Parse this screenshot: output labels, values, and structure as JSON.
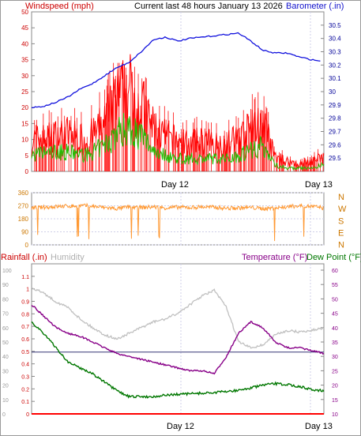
{
  "header": {
    "title": "Current last 48 hours January 13 2026"
  },
  "colors": {
    "wind": "#ff0000",
    "gust_bars": "#ff0000",
    "wind_avg": "#22bb00",
    "barometer": "#1111dd",
    "direction": "#ff9933",
    "rain": "#ff0000",
    "humidity": "#c0c0c0",
    "temperature": "#880088",
    "dewpoint": "#007700",
    "axis_left": "#cc0000",
    "axis_right_baro": "#000099",
    "axis_dir": "#cc7700",
    "rain_baseline": "#333377",
    "grid": "#cfcfe8"
  },
  "chart_data": [
    {
      "type": "line",
      "name": "wind_barometer",
      "title": "Current last 48 hours January 13 2026",
      "ylabel_left": "Windspeed (mph)",
      "ylabel_right": "Barometer (.in)",
      "ylim_left": [
        0,
        50
      ],
      "ylim_right": [
        29.4,
        30.6
      ],
      "yticks_left": [
        "0",
        "5",
        "10",
        "15",
        "20",
        "25",
        "30",
        "35",
        "40",
        "45",
        "50"
      ],
      "yticks_right": [
        "29.5",
        "29.6",
        "29.7",
        "29.8",
        "29.9",
        "30",
        "30.1",
        "30.2",
        "30.3",
        "30.4",
        "30.5"
      ],
      "xticks": [
        "Day 12",
        "Day 13"
      ],
      "xlim_hours": [
        0,
        48
      ],
      "series": [
        {
          "name": "Windspeed",
          "x": [
            0,
            3,
            6,
            9,
            12,
            14,
            16,
            18,
            20,
            22,
            24,
            26,
            28,
            30,
            32,
            34,
            36,
            38,
            40,
            42,
            44,
            46,
            48
          ],
          "values": [
            9,
            10,
            11,
            9,
            14,
            21,
            24,
            19,
            13,
            10,
            9,
            8,
            9,
            8,
            8,
            10,
            12,
            14,
            4,
            3,
            2,
            3,
            4
          ]
        },
        {
          "name": "Wind average",
          "x": [
            0,
            3,
            6,
            9,
            12,
            14,
            16,
            18,
            20,
            22,
            24,
            26,
            28,
            30,
            32,
            34,
            36,
            38,
            40,
            42,
            44,
            46,
            48
          ],
          "values": [
            5,
            6,
            6,
            5,
            8,
            12,
            14,
            11,
            7,
            5,
            4,
            4,
            4,
            4,
            4,
            5,
            7,
            8,
            2,
            1,
            1,
            1,
            2
          ]
        },
        {
          "name": "Barometer",
          "x": [
            0,
            2,
            4,
            6,
            8,
            10,
            12,
            14,
            16,
            18,
            20,
            22,
            24,
            26,
            28,
            30,
            32,
            34,
            36,
            38,
            40,
            42,
            44,
            46,
            47.5
          ],
          "values": [
            29.88,
            29.89,
            29.92,
            29.96,
            30.02,
            30.06,
            30.12,
            30.18,
            30.22,
            30.3,
            30.39,
            30.41,
            30.38,
            30.4,
            30.41,
            30.42,
            30.43,
            30.44,
            30.38,
            30.31,
            30.29,
            30.29,
            30.26,
            30.24,
            30.23
          ]
        }
      ]
    },
    {
      "type": "line",
      "name": "wind_direction",
      "ylim": [
        0,
        360
      ],
      "yticks": [
        "0",
        "90",
        "180",
        "270",
        "360"
      ],
      "compass_labels": [
        "N",
        "W",
        "S",
        "E",
        "N"
      ],
      "series": [
        {
          "name": "Direction",
          "x": [
            0,
            3,
            6,
            9,
            12,
            14,
            16,
            18,
            20,
            22,
            24,
            26,
            28,
            30,
            32,
            34,
            36,
            38,
            40,
            42,
            44,
            46,
            48
          ],
          "values": [
            255,
            262,
            268,
            270,
            258,
            250,
            262,
            258,
            262,
            255,
            260,
            258,
            262,
            260,
            252,
            255,
            258,
            250,
            255,
            262,
            270,
            265,
            255
          ]
        }
      ]
    },
    {
      "type": "line",
      "name": "rain_humidity_temperature",
      "ylabel_left": "Rainfall (.in)",
      "ylabel_left_secondary": "Humidity",
      "ylabel_right": "Temperature (°F)",
      "ylabel_right_secondary": "Dew Point (°F)",
      "ylim_rain": [
        0,
        1.2
      ],
      "ylim_humidity": [
        0,
        100
      ],
      "ylim_temp": [
        10,
        60
      ],
      "yticks_rain": [
        "0",
        "0.1",
        "0.2",
        "0.3",
        "0.4",
        "0.5",
        "0.6",
        "0.7",
        "0.8",
        "0.9",
        "1",
        "1.1"
      ],
      "yticks_humidity": [
        "0",
        "10",
        "20",
        "30",
        "40",
        "50",
        "60",
        "70",
        "80",
        "90",
        "100"
      ],
      "yticks_temp": [
        "10",
        "15",
        "20",
        "25",
        "30",
        "35",
        "40",
        "45",
        "50",
        "55",
        "60"
      ],
      "xticks": [
        "Day 12",
        "Day 13"
      ],
      "series": [
        {
          "name": "Rainfall",
          "x": [
            0,
            48
          ],
          "values": [
            0,
            0
          ]
        },
        {
          "name": "Humidity",
          "x": [
            0,
            2,
            4,
            6,
            8,
            10,
            12,
            14,
            16,
            18,
            20,
            22,
            24,
            26,
            28,
            30,
            32,
            34,
            36,
            38,
            40,
            42,
            44,
            46,
            48
          ],
          "values": [
            88,
            84,
            78,
            74,
            66,
            60,
            55,
            52,
            56,
            60,
            64,
            66,
            70,
            76,
            82,
            86,
            74,
            50,
            46,
            48,
            55,
            58,
            57,
            58,
            60
          ]
        },
        {
          "name": "Temperature",
          "x": [
            0,
            2,
            4,
            6,
            8,
            10,
            12,
            14,
            16,
            18,
            20,
            22,
            24,
            26,
            28,
            30,
            32,
            34,
            36,
            38,
            40,
            42,
            44,
            46,
            48
          ],
          "values": [
            48,
            44,
            40,
            38,
            37,
            35,
            33,
            31,
            30,
            29,
            28,
            27,
            26,
            25,
            25,
            24,
            30,
            38,
            42,
            40,
            35,
            33,
            33,
            32,
            31
          ]
        },
        {
          "name": "Dew Point",
          "x": [
            0,
            2,
            4,
            6,
            8,
            10,
            12,
            14,
            16,
            18,
            20,
            22,
            24,
            26,
            28,
            30,
            32,
            34,
            36,
            38,
            40,
            42,
            44,
            46,
            48
          ],
          "values": [
            42,
            38,
            33,
            28,
            26,
            24,
            21,
            18,
            16,
            16,
            16,
            16.5,
            16.8,
            17,
            17.2,
            17.4,
            17.8,
            18.2,
            19,
            20,
            20.5,
            20.2,
            19.5,
            18.5,
            18
          ]
        }
      ]
    }
  ]
}
